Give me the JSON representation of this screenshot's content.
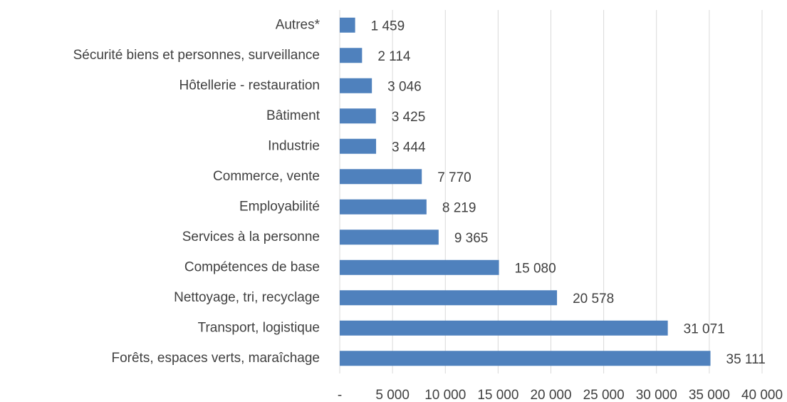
{
  "chart_data": {
    "type": "bar",
    "orientation": "horizontal",
    "categories": [
      "Autres*",
      "Sécurité biens et personnes, surveillance",
      "Hôtellerie - restauration",
      "Bâtiment",
      "Industrie",
      "Commerce, vente",
      "Employabilité",
      "Services à la personne",
      "Compétences de base",
      "Nettoyage, tri, recyclage",
      "Transport, logistique",
      "Forêts, espaces verts, maraîchage"
    ],
    "values": [
      1459,
      2114,
      3046,
      3425,
      3444,
      7770,
      8219,
      9365,
      15080,
      20578,
      31071,
      35111
    ],
    "value_labels": [
      "1 459",
      "2 114",
      "3 046",
      "3 425",
      "3 444",
      "7 770",
      "8 219",
      "9 365",
      "15 080",
      "20 578",
      "31 071",
      "35 111"
    ],
    "color": "#4f81bd",
    "xlim": [
      0,
      40000
    ],
    "xticks": [
      {
        "value": 0,
        "label": "-"
      },
      {
        "value": 5000,
        "label": "5 000"
      },
      {
        "value": 10000,
        "label": "10 000"
      },
      {
        "value": 15000,
        "label": "15 000"
      },
      {
        "value": 20000,
        "label": "20 000"
      },
      {
        "value": 25000,
        "label": "25 000"
      },
      {
        "value": 30000,
        "label": "30 000"
      },
      {
        "value": 35000,
        "label": "35 000"
      },
      {
        "value": 40000,
        "label": "40 000"
      }
    ],
    "grid": true
  }
}
